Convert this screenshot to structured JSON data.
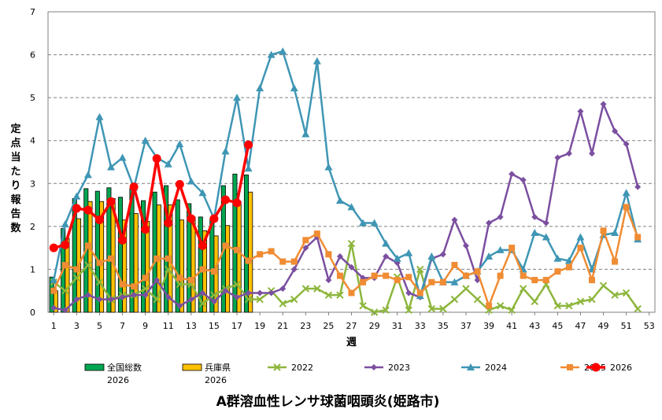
{
  "chart_data": {
    "type": "bar+line",
    "title": "A群溶血性レンサ球菌咽頭炎(姫路市)",
    "xlabel": "週",
    "ylabel": "定点当たり報告数",
    "xlim": [
      1,
      53
    ],
    "ylim": [
      0,
      7
    ],
    "x_ticks": [
      1,
      3,
      5,
      7,
      9,
      11,
      13,
      15,
      17,
      19,
      21,
      23,
      25,
      27,
      29,
      31,
      33,
      35,
      37,
      39,
      41,
      43,
      45,
      47,
      49,
      51,
      53
    ],
    "y_ticks": [
      0,
      1,
      2,
      3,
      4,
      5,
      6,
      7
    ],
    "grid": "horizontal-dashed",
    "legend_position": "bottom",
    "bars": [
      {
        "name": "全国総数\n2026",
        "label1": "全国総数",
        "label2": "2026",
        "color": "#00a651",
        "values": [
          0.82,
          1.95,
          2.65,
          2.88,
          2.82,
          2.9,
          2.68,
          2.88,
          2.6,
          2.8,
          2.95,
          2.62,
          2.53,
          2.22,
          2.18,
          2.95,
          3.22,
          3.2
        ]
      },
      {
        "name": "兵庫県\n2026",
        "label1": "兵庫県",
        "label2": "2026",
        "color": "#ffc000",
        "values": [
          0.5,
          1.72,
          2.18,
          2.58,
          2.58,
          2.65,
          2.15,
          2.3,
          2.12,
          2.5,
          2.5,
          2.15,
          2.22,
          1.9,
          1.78,
          2.02,
          2.58,
          2.8
        ]
      }
    ],
    "series": [
      {
        "name": "2022",
        "color": "#8db63c",
        "marker": "x",
        "values": [
          0.7,
          0.5,
          0.8,
          1.1,
          0.7,
          0.3,
          0.4,
          0.4,
          0.55,
          0.3,
          1.0,
          0.65,
          0.65,
          0.2,
          0.4,
          0.55,
          0.65,
          0.3,
          0.3,
          0.5,
          0.2,
          0.3,
          0.55,
          0.55,
          0.4,
          0.4,
          1.6,
          0.15,
          0.0,
          0.05,
          0.82,
          0.05,
          1.0,
          0.08,
          0.08,
          0.3,
          0.55,
          0.3,
          0.05,
          0.15,
          0.05,
          0.55,
          0.25,
          0.65,
          0.15,
          0.15,
          0.25,
          0.3,
          0.62,
          0.4,
          0.45,
          0.08
        ]
      },
      {
        "name": "2023",
        "color": "#7b4fa0",
        "marker": "diamond",
        "values": [
          0.1,
          0.05,
          0.3,
          0.4,
          0.3,
          0.3,
          0.35,
          0.4,
          0.4,
          0.75,
          0.35,
          0.15,
          0.3,
          0.45,
          0.25,
          0.5,
          0.35,
          0.45,
          0.45,
          0.45,
          0.55,
          1.0,
          1.5,
          1.75,
          0.75,
          1.3,
          1.05,
          0.8,
          0.8,
          1.3,
          1.15,
          0.45,
          0.35,
          1.25,
          1.35,
          2.15,
          1.55,
          0.75,
          2.08,
          2.22,
          3.22,
          3.08,
          2.22,
          2.08,
          3.6,
          3.7,
          4.68,
          3.7,
          4.85,
          4.22,
          3.92,
          2.92
        ]
      },
      {
        "name": "2024",
        "color": "#3f96b4",
        "marker": "triangle",
        "values": [
          0.75,
          2.05,
          2.7,
          3.2,
          4.55,
          3.38,
          3.6,
          2.9,
          4.0,
          3.6,
          3.45,
          3.92,
          3.05,
          2.78,
          2.18,
          3.75,
          5.0,
          3.35,
          5.22,
          6.0,
          6.08,
          5.22,
          4.15,
          5.85,
          3.38,
          2.6,
          2.45,
          2.08,
          2.08,
          1.6,
          1.25,
          1.38,
          0.38,
          1.3,
          0.7,
          0.7,
          0.85,
          0.95,
          1.3,
          1.45,
          1.45,
          1.0,
          1.85,
          1.75,
          1.25,
          1.2,
          1.75,
          1.0,
          1.8,
          1.85,
          2.78,
          1.7
        ]
      },
      {
        "name": "2025",
        "color": "#f08c34",
        "marker": "square",
        "values": [
          0.5,
          1.1,
          1.0,
          1.55,
          1.15,
          1.25,
          0.65,
          0.6,
          0.8,
          1.25,
          1.25,
          0.8,
          0.75,
          1.0,
          0.95,
          1.55,
          1.45,
          1.2,
          1.35,
          1.42,
          1.18,
          1.18,
          1.68,
          1.83,
          1.35,
          0.85,
          0.45,
          0.7,
          0.85,
          0.85,
          0.75,
          0.82,
          0.45,
          0.7,
          0.7,
          1.1,
          0.85,
          0.95,
          0.15,
          0.85,
          1.5,
          0.85,
          0.75,
          0.75,
          0.95,
          1.05,
          1.5,
          0.75,
          1.9,
          1.18,
          2.45,
          1.75
        ]
      },
      {
        "name": "2026",
        "color": "#ff0000",
        "marker": "circle-large",
        "values": [
          1.5,
          1.57,
          2.42,
          2.38,
          2.15,
          2.58,
          1.68,
          2.92,
          1.93,
          3.58,
          2.08,
          2.98,
          2.18,
          1.55,
          2.18,
          2.62,
          2.55,
          3.9
        ]
      }
    ]
  }
}
